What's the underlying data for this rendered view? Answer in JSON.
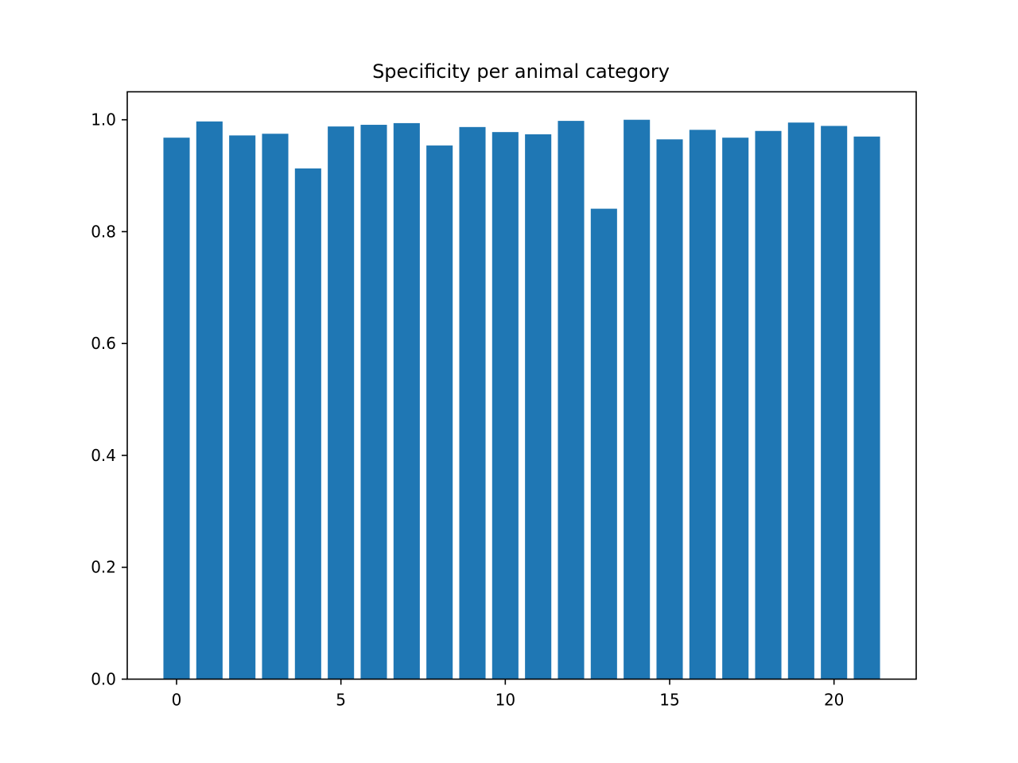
{
  "chart_data": {
    "type": "bar",
    "title": "Specificity per animal category",
    "xlabel": "",
    "ylabel": "",
    "categories": [
      0,
      1,
      2,
      3,
      4,
      5,
      6,
      7,
      8,
      9,
      10,
      11,
      12,
      13,
      14,
      15,
      16,
      17,
      18,
      19,
      20,
      21
    ],
    "values": [
      0.968,
      0.997,
      0.972,
      0.975,
      0.913,
      0.988,
      0.991,
      0.994,
      0.954,
      0.987,
      0.978,
      0.974,
      0.998,
      0.841,
      1.0,
      0.965,
      0.982,
      0.968,
      0.98,
      0.995,
      0.989,
      0.97
    ],
    "xlim": [
      -1.5,
      22.5
    ],
    "ylim": [
      0,
      1.05
    ],
    "xticks": [
      0,
      5,
      10,
      15,
      20
    ],
    "xtick_labels": [
      "0",
      "5",
      "10",
      "15",
      "20"
    ],
    "yticks": [
      0.0,
      0.2,
      0.4,
      0.6,
      0.8,
      1.0
    ],
    "ytick_labels": [
      "0.0",
      "0.2",
      "0.4",
      "0.6",
      "0.8",
      "1.0"
    ],
    "bar_width": 0.8,
    "bar_color": "#1f77b4",
    "grid": false,
    "legend": "none"
  }
}
